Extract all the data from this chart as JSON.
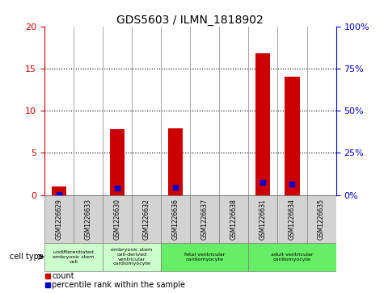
{
  "title": "GDS5603 / ILMN_1818902",
  "samples": [
    "GSM1226629",
    "GSM1226633",
    "GSM1226630",
    "GSM1226632",
    "GSM1226636",
    "GSM1226637",
    "GSM1226638",
    "GSM1226631",
    "GSM1226634",
    "GSM1226635"
  ],
  "counts": [
    1.0,
    0.0,
    7.8,
    0.0,
    7.9,
    0.0,
    0.0,
    16.8,
    14.0,
    0.0
  ],
  "percentiles": [
    0.5,
    0.0,
    4.0,
    0.0,
    4.5,
    0.0,
    0.0,
    7.5,
    6.5,
    0.0
  ],
  "ylim_left": [
    0,
    20
  ],
  "ylim_right": [
    0,
    100
  ],
  "yticks_left": [
    0,
    5,
    10,
    15,
    20
  ],
  "yticks_right": [
    0,
    25,
    50,
    75,
    100
  ],
  "yticklabels_left": [
    "0",
    "5",
    "10",
    "15",
    "20"
  ],
  "yticklabels_right": [
    "0%",
    "25%",
    "50%",
    "75%",
    "100%"
  ],
  "cell_type_groups": [
    {
      "label": "undifferentiated\nembryonic stem\ncell",
      "start": 0,
      "end": 2,
      "color": "#ccffcc"
    },
    {
      "label": "embryonic stem\ncell-derived\nventricular\ncardiomyocyte",
      "start": 2,
      "end": 4,
      "color": "#ccffcc"
    },
    {
      "label": "fetal ventricular\ncardiomyocyte",
      "start": 4,
      "end": 7,
      "color": "#66ee66"
    },
    {
      "label": "adult ventricular\ncardiomyocyte",
      "start": 7,
      "end": 10,
      "color": "#66ee66"
    }
  ],
  "bar_color": "#cc0000",
  "percentile_color": "#0000cc",
  "bar_width": 0.5,
  "background_color": "#ffffff",
  "tick_color_left": "#cc0000",
  "tick_color_right": "#0000cc",
  "cell_type_label": "cell type",
  "legend_count_label": "count",
  "legend_percentile_label": "percentile rank within the sample",
  "table_bg_color": "#d3d3d3"
}
